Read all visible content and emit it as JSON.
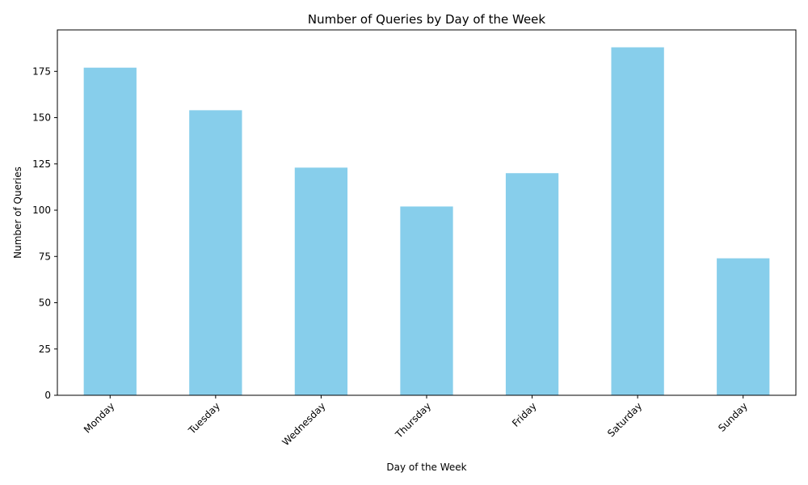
{
  "chart_data": {
    "type": "bar",
    "title": "Number of Queries by Day of the Week",
    "xlabel": "Day of the Week",
    "ylabel": "Number of Queries",
    "categories": [
      "Monday",
      "Tuesday",
      "Wednesday",
      "Thursday",
      "Friday",
      "Saturday",
      "Sunday"
    ],
    "values": [
      177,
      154,
      123,
      102,
      120,
      188,
      74
    ],
    "ylim": [
      0,
      197.4
    ],
    "yticks": [
      0,
      25,
      50,
      75,
      100,
      125,
      150,
      175
    ],
    "bar_color": "#87CEEB",
    "grid": false,
    "legend": "none"
  }
}
